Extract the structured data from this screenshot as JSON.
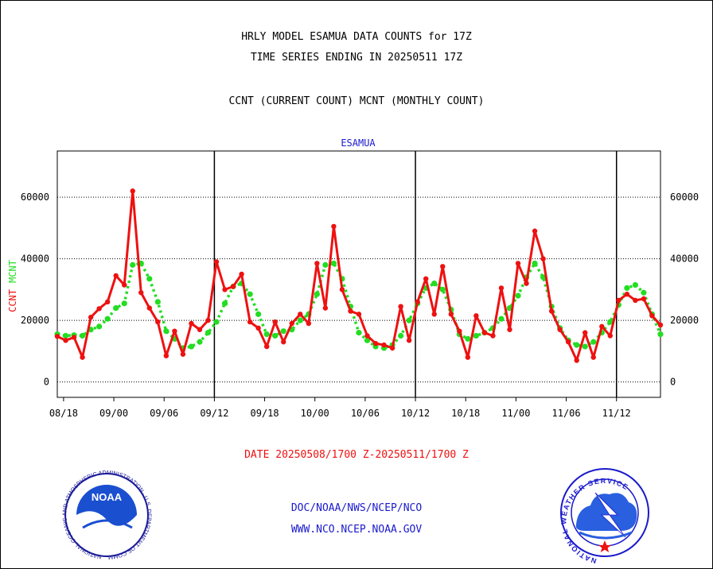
{
  "header": {
    "title_line1": "HRLY MODEL ESAMUA DATA COUNTS for 17Z",
    "title_line2": "TIME SERIES ENDING IN 20250511 17Z",
    "subtitle": "CCNT (CURRENT COUNT) MCNT (MONTHLY COUNT)"
  },
  "footer": {
    "date_range": "DATE 20250508/1700 Z-20250511/1700 Z",
    "org_path": "DOC/NOAA/NWS/NCEP/NCO",
    "website": "WWW.NCO.NCEP.NOAA.GOV"
  },
  "colors": {
    "ccnt": "#ee1111",
    "mcnt": "#22dd22",
    "chart_title": "#1a1acc",
    "date_range": "#ee1111",
    "footer_text": "#1a1acc"
  },
  "chart_data": {
    "type": "line",
    "title": "ESAMUA",
    "ylabel_parts": [
      "CCNT",
      "MCNT"
    ],
    "ylim": [
      -5000,
      75000
    ],
    "yticks": [
      0,
      20000,
      40000,
      60000
    ],
    "ytick_labels": [
      "0",
      "20000",
      "40000",
      "60000"
    ],
    "xlim": [
      0,
      96
    ],
    "xtick_positions": [
      1,
      9,
      17,
      25,
      33,
      41,
      49,
      57,
      65,
      73,
      81,
      89
    ],
    "xtick_labels": [
      "08/18",
      "09/00",
      "09/06",
      "09/12",
      "09/18",
      "10/00",
      "10/06",
      "10/12",
      "10/18",
      "11/00",
      "11/06",
      "11/12"
    ],
    "day_boundaries": [
      25,
      57,
      89
    ],
    "grid": "horizontal",
    "series": [
      {
        "name": "CCNT",
        "values": [
          14800,
          13500,
          14500,
          8000,
          21000,
          23800,
          26000,
          34500,
          31500,
          62000,
          29000,
          24000,
          19500,
          8500,
          16500,
          9000,
          19000,
          17000,
          20000,
          39000,
          30000,
          31000,
          35000,
          19500,
          17500,
          11500,
          19500,
          13000,
          19000,
          22000,
          19000,
          38500,
          24000,
          50500,
          30000,
          23000,
          22000,
          15000,
          12500,
          12000,
          11000,
          24500,
          13500,
          26000,
          33500,
          22000,
          37500,
          22000,
          16500,
          8000,
          21500,
          16000,
          15000,
          30500,
          17000,
          38500,
          32000,
          49000,
          40000,
          23000,
          17000,
          13000,
          7000,
          16000,
          8000,
          18000,
          15000,
          26500,
          28500,
          26500,
          27000,
          21500,
          18500
        ]
      },
      {
        "name": "MCNT",
        "values": [
          15500,
          15000,
          15200,
          15000,
          17000,
          18000,
          20500,
          24000,
          25500,
          38000,
          38500,
          33500,
          26000,
          16500,
          14000,
          11000,
          11500,
          13000,
          16000,
          19500,
          25500,
          31000,
          32000,
          28500,
          22000,
          15500,
          15000,
          16500,
          17000,
          20000,
          22000,
          28500,
          38000,
          38500,
          33500,
          24500,
          16000,
          13500,
          11500,
          11000,
          12000,
          15000,
          20000,
          25500,
          30500,
          32000,
          30000,
          23500,
          15500,
          14000,
          15000,
          16000,
          17500,
          20500,
          24000,
          28000,
          34000,
          38500,
          34000,
          24500,
          17500,
          13500,
          12000,
          11500,
          13000,
          16000,
          19500,
          25000,
          30500,
          31500,
          29000,
          22000,
          15500
        ]
      }
    ]
  },
  "logos": {
    "left_label": "NOAA",
    "left_ring_text": "NATIONAL OCEANIC AND ATMOSPHERIC ADMINISTRATION · U.S. DEPARTMENT OF COMMERCE ·",
    "right_ring_text": "NATIONAL WEATHER SERVICE"
  }
}
